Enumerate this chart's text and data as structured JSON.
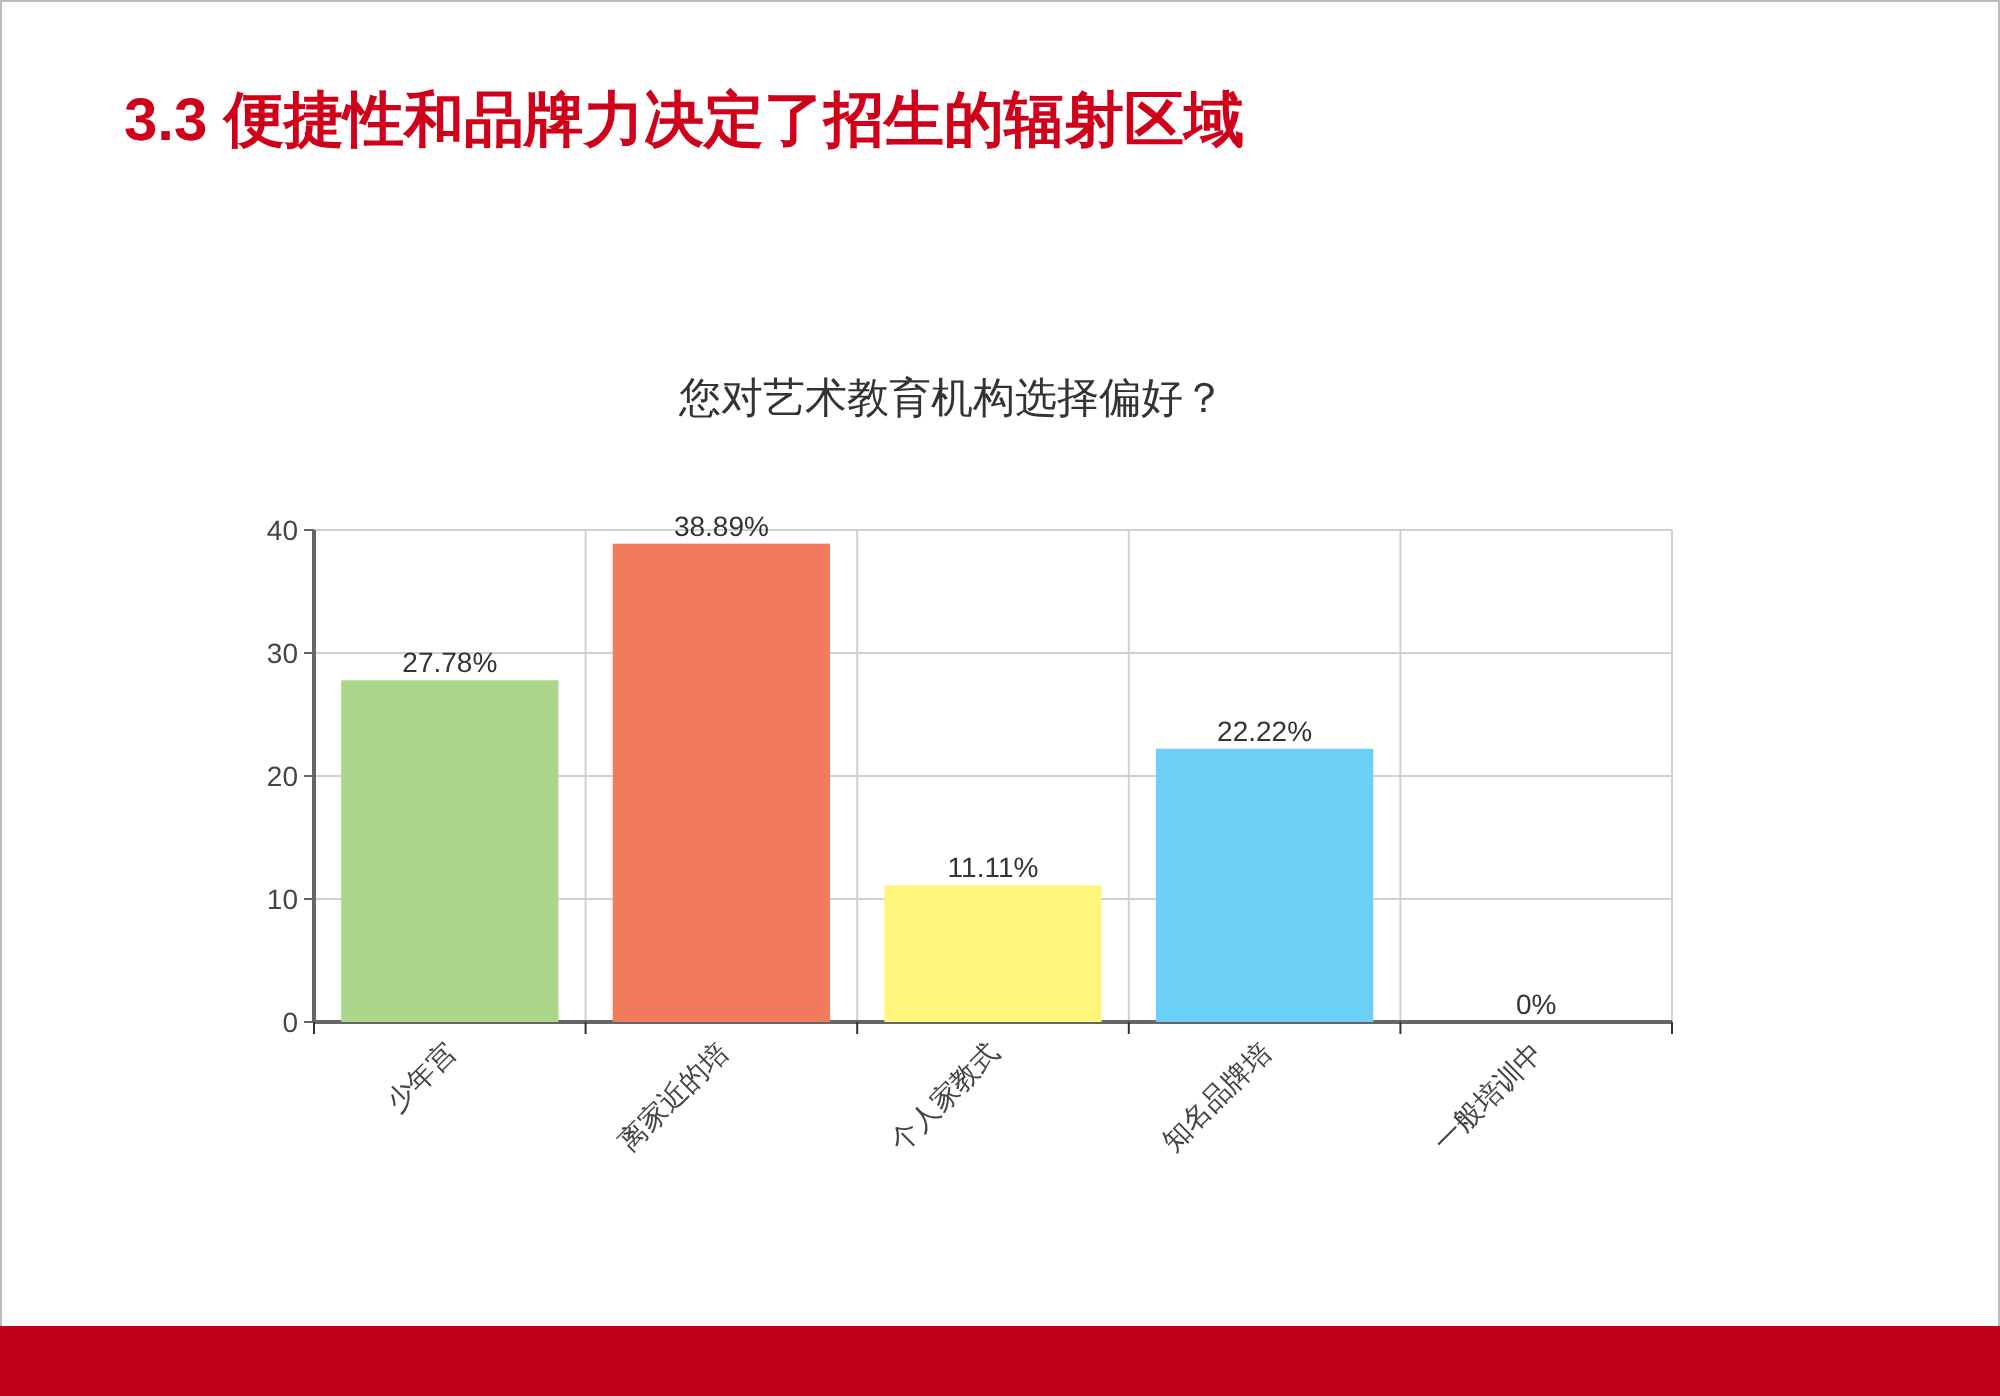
{
  "chart_data": {
    "type": "bar",
    "title": "3.3 便捷性和品牌力决定了招生的辐射区域",
    "subtitle": "您对艺术教育机构选择偏好？",
    "categories": [
      "少年宫",
      "离家近的培",
      "个人家教式",
      "知名品牌培",
      "一般培训中"
    ],
    "values": [
      27.78,
      38.89,
      11.11,
      22.22,
      0
    ],
    "value_labels": [
      "27.78%",
      "38.89%",
      "11.11%",
      "22.22%",
      "0%"
    ],
    "colors": [
      "#acd68a",
      "#f27b5d",
      "#fff47c",
      "#6ccff6",
      "#cccccc"
    ],
    "ylim": [
      0,
      40
    ],
    "yticks": [
      0,
      10,
      20,
      30,
      40
    ],
    "grid": true
  }
}
